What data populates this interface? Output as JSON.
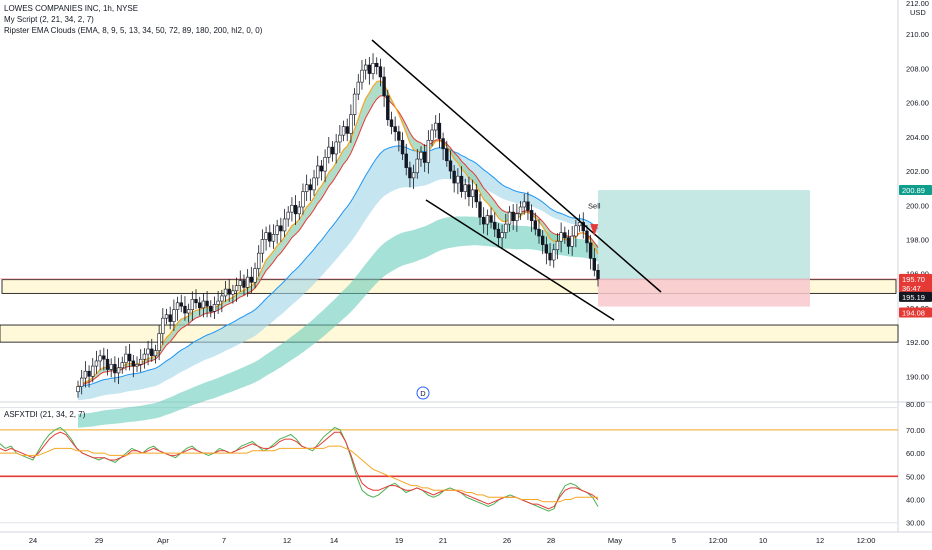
{
  "header": {
    "symbol_line": "LOWES COMPANIES INC, 1h, NYSE",
    "indicator_1": "My Script (2, 21, 34, 2, 7)",
    "indicator_2": "Ripster EMA Clouds (EMA, 8, 9, 5, 13, 34, 50, 72, 89, 180, 200, hl2, 0, 0)",
    "currency": "USD",
    "top_tick": "212.00"
  },
  "lower_pane": {
    "title": "ASFXTDI (21, 34, 2, 7)",
    "top_tick": "80.00"
  },
  "annotations": {
    "sell_label": "Sell",
    "d_marker": "D"
  },
  "price_tags": [
    {
      "label": "200.89",
      "value": 200.89,
      "color": "#0f9d8c"
    },
    {
      "label": "195.70",
      "value": 195.7,
      "color": "#e53935"
    },
    {
      "label": "36:47",
      "value": 195.45,
      "color": "#e53935"
    },
    {
      "label": "195.19",
      "value": 195.19,
      "color": "#131722"
    },
    {
      "label": "194.08",
      "value": 194.08,
      "color": "#e53935"
    }
  ],
  "colors": {
    "bull": "#089981",
    "bear": "#f23645",
    "candle": "#131722",
    "trendline": "#000000",
    "target_zone": "#b2e0dc",
    "stop_zone": "#f8c9cc",
    "zone_fill": "#fff9d9",
    "cloud_green": "#8fcfb2",
    "cloud_blue": "#9fd6e8",
    "cloud_teal": "#5cc8b8",
    "ema_orange": "#f5a623",
    "ema_red": "#e53935",
    "ema_teal": "#26a69a",
    "ema_blue": "#2196f3",
    "osc_green": "#4caf50",
    "osc_red": "#e53935",
    "osc_orange": "#f5a623",
    "level_70": "#f5a623",
    "level_50": "#e53935",
    "grid": "#eceff4"
  },
  "chart_data": [
    {
      "type": "candlestick",
      "title": "LOWES COMPANIES INC, 1h, NYSE",
      "ylim": [
        188.5,
        212.0
      ],
      "y_ticks": [
        "190.00",
        "192.00",
        "194.00",
        "196.00",
        "198.00",
        "200.00",
        "202.00",
        "204.00",
        "206.00",
        "208.00",
        "210.00"
      ],
      "x_tick_labels": [
        "24",
        "29",
        "Apr",
        "7",
        "12",
        "14",
        "19",
        "21",
        "26",
        "28",
        "May",
        "5",
        "12:00",
        "10",
        "12",
        "12:00"
      ],
      "closes": [
        189.4,
        189.9,
        190.3,
        190.0,
        190.6,
        190.9,
        191.2,
        191.0,
        190.4,
        190.7,
        190.2,
        190.5,
        190.8,
        191.3,
        190.9,
        190.6,
        190.7,
        191.0,
        191.3,
        191.6,
        191.2,
        191.5,
        192.5,
        193.4,
        193.6,
        193.2,
        193.9,
        194.3,
        194.1,
        193.7,
        193.9,
        194.5,
        194.3,
        194.0,
        194.4,
        194.1,
        193.8,
        194.2,
        194.4,
        194.7,
        195.1,
        194.8,
        195.0,
        195.3,
        195.6,
        195.2,
        195.8,
        195.5,
        196.3,
        197.2,
        198.0,
        198.4,
        197.9,
        198.3,
        198.8,
        198.5,
        199.2,
        199.6,
        200.0,
        199.5,
        199.9,
        200.8,
        201.2,
        200.9,
        201.6,
        202.3,
        202.0,
        202.8,
        203.4,
        203.0,
        203.7,
        204.1,
        204.6,
        204.2,
        205.3,
        206.5,
        207.2,
        207.9,
        208.2,
        207.7,
        208.3,
        208.1,
        207.5,
        206.4,
        205.0,
        204.6,
        204.3,
        203.8,
        203.0,
        202.2,
        201.6,
        201.9,
        202.7,
        203.1,
        202.5,
        203.8,
        204.4,
        204.8,
        203.9,
        203.3,
        202.6,
        202.0,
        201.3,
        201.7,
        200.8,
        201.2,
        200.5,
        200.9,
        200.2,
        199.3,
        198.9,
        199.4,
        199.0,
        198.6,
        198.1,
        198.4,
        198.9,
        199.6,
        199.1,
        199.5,
        199.9,
        200.2,
        199.7,
        199.1,
        198.6,
        198.2,
        197.7,
        197.2,
        196.8,
        197.4,
        197.9,
        198.4,
        198.1,
        197.6,
        198.2,
        198.8,
        199.0,
        198.5,
        197.8,
        196.9,
        196.2,
        195.7
      ]
    },
    {
      "type": "line",
      "title": "ASFXTDI (21, 34, 2, 7)",
      "ylim": [
        26,
        82
      ],
      "y_ticks": [
        "30.00",
        "40.00",
        "50.00",
        "60.00",
        "70.00"
      ],
      "series": [
        {
          "values": [
            64,
            62,
            63,
            60,
            59,
            58,
            57,
            61,
            65,
            68,
            70,
            71,
            69,
            66,
            62,
            60,
            59,
            58,
            57,
            58,
            57,
            56,
            58,
            60,
            62,
            61,
            60,
            62,
            63,
            61,
            60,
            59,
            58,
            60,
            62,
            63,
            61,
            60,
            59,
            60,
            62,
            61,
            60,
            61,
            63,
            64,
            65,
            63,
            61,
            62,
            64,
            66,
            67,
            68,
            66,
            63,
            62,
            61,
            64,
            67,
            69,
            71,
            70,
            65,
            58,
            50,
            44,
            42,
            41,
            42,
            44,
            46,
            47,
            45,
            43,
            44,
            45,
            44,
            42,
            41,
            42,
            44,
            45,
            44,
            43,
            41,
            40,
            39,
            38,
            37,
            38,
            40,
            41,
            42,
            41,
            40,
            39,
            38,
            37,
            36,
            35,
            36,
            42,
            46,
            47,
            46,
            44,
            43,
            41,
            37
          ]
        },
        {
          "values": [
            62,
            61,
            62,
            61,
            60,
            59,
            58,
            60,
            63,
            66,
            68,
            69,
            68,
            65,
            62,
            60,
            59,
            58,
            58,
            58,
            57,
            57,
            58,
            59,
            61,
            61,
            60,
            61,
            62,
            61,
            60,
            59,
            59,
            60,
            61,
            62,
            61,
            60,
            60,
            60,
            61,
            61,
            60,
            61,
            62,
            63,
            64,
            63,
            62,
            62,
            63,
            65,
            66,
            66,
            65,
            63,
            62,
            62,
            63,
            65,
            67,
            69,
            69,
            65,
            59,
            52,
            47,
            45,
            44,
            44,
            45,
            46,
            46,
            45,
            44,
            44,
            45,
            44,
            43,
            42,
            43,
            44,
            44,
            44,
            43,
            42,
            41,
            40,
            39,
            38,
            39,
            40,
            41,
            41,
            41,
            40,
            39,
            38,
            38,
            37,
            36,
            37,
            41,
            44,
            45,
            45,
            44,
            43,
            42,
            40
          ]
        },
        {
          "values": [
            60,
            60,
            60,
            60,
            59,
            59,
            59,
            59,
            60,
            61,
            62,
            62,
            62,
            62,
            61,
            61,
            61,
            60,
            60,
            60,
            59,
            59,
            59,
            59,
            60,
            60,
            60,
            60,
            60,
            60,
            60,
            60,
            60,
            60,
            60,
            60,
            60,
            60,
            60,
            60,
            60,
            60,
            60,
            60,
            60,
            60,
            61,
            61,
            61,
            61,
            61,
            62,
            62,
            62,
            62,
            62,
            62,
            62,
            62,
            62,
            63,
            63,
            63,
            62,
            61,
            59,
            57,
            55,
            53,
            52,
            51,
            50,
            49,
            48,
            47,
            46,
            46,
            45,
            45,
            44,
            44,
            44,
            44,
            44,
            44,
            43,
            43,
            42,
            42,
            41,
            41,
            41,
            41,
            41,
            41,
            40,
            40,
            40,
            40,
            39,
            39,
            39,
            39,
            40,
            40,
            41,
            41,
            41,
            41,
            41
          ]
        }
      ],
      "levels": [
        70,
        50
      ]
    }
  ]
}
